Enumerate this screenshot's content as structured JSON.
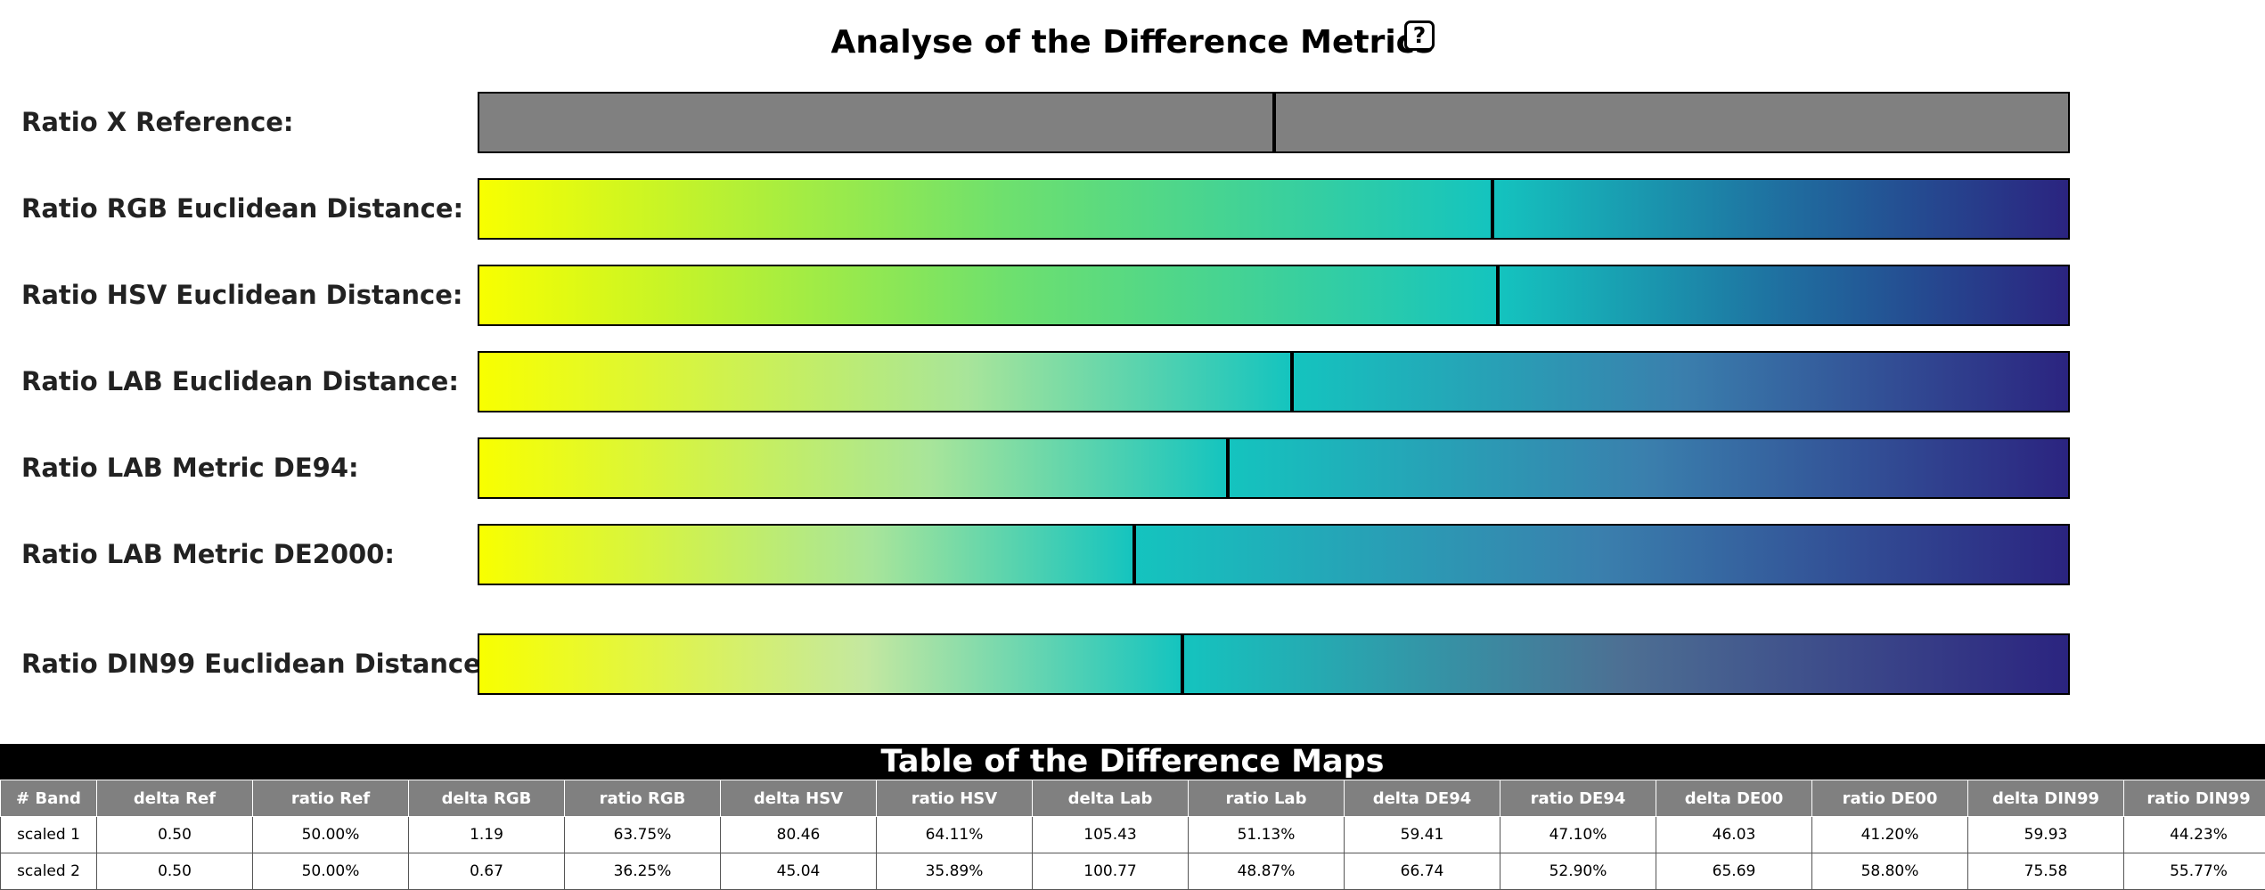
{
  "header": {
    "title": "Analyse of the Difference Metrics",
    "help_label": "?"
  },
  "metrics": [
    {
      "label": "Ratio X Reference:",
      "ratio": 0.5,
      "gradient": "gray"
    },
    {
      "label": "Ratio RGB Euclidean Distance:",
      "ratio": 0.6375,
      "gradient": "viridis-saturated"
    },
    {
      "label": "Ratio HSV Euclidean Distance:",
      "ratio": 0.6411,
      "gradient": "viridis-saturated"
    },
    {
      "label": "Ratio LAB Euclidean Distance:",
      "ratio": 0.5113,
      "gradient": "viridis-soft"
    },
    {
      "label": "Ratio LAB Metric DE94:",
      "ratio": 0.471,
      "gradient": "viridis-soft"
    },
    {
      "label": "Ratio LAB Metric DE2000:",
      "ratio": 0.412,
      "gradient": "viridis-soft"
    },
    {
      "label": "Ratio DIN99 Euclidean Distance:",
      "ratio": 0.4423,
      "gradient": "viridis-pale"
    }
  ],
  "colors": {
    "gray": "#808080",
    "yellow": "#f8ff00",
    "green": "#6ee06e",
    "teal": "#14c4bf",
    "navy": "#2b2480"
  },
  "table": {
    "title": "Table of the Difference Maps",
    "columns": [
      "# Band",
      "delta Ref",
      "ratio Ref",
      "delta RGB",
      "ratio RGB",
      "delta HSV",
      "ratio HSV",
      "delta Lab",
      "ratio Lab",
      "delta DE94",
      "ratio DE94",
      "delta DE00",
      "ratio DE00",
      "delta DIN99",
      "ratio DIN99"
    ],
    "rows": [
      [
        "scaled 1",
        "0.50",
        "50.00%",
        "1.19",
        "63.75%",
        "80.46",
        "64.11%",
        "105.43",
        "51.13%",
        "59.41",
        "47.10%",
        "46.03",
        "41.20%",
        "59.93",
        "44.23%"
      ],
      [
        "scaled 2",
        "0.50",
        "50.00%",
        "0.67",
        "36.25%",
        "45.04",
        "35.89%",
        "100.77",
        "48.87%",
        "66.74",
        "52.90%",
        "65.69",
        "58.80%",
        "75.58",
        "55.77%"
      ]
    ]
  }
}
